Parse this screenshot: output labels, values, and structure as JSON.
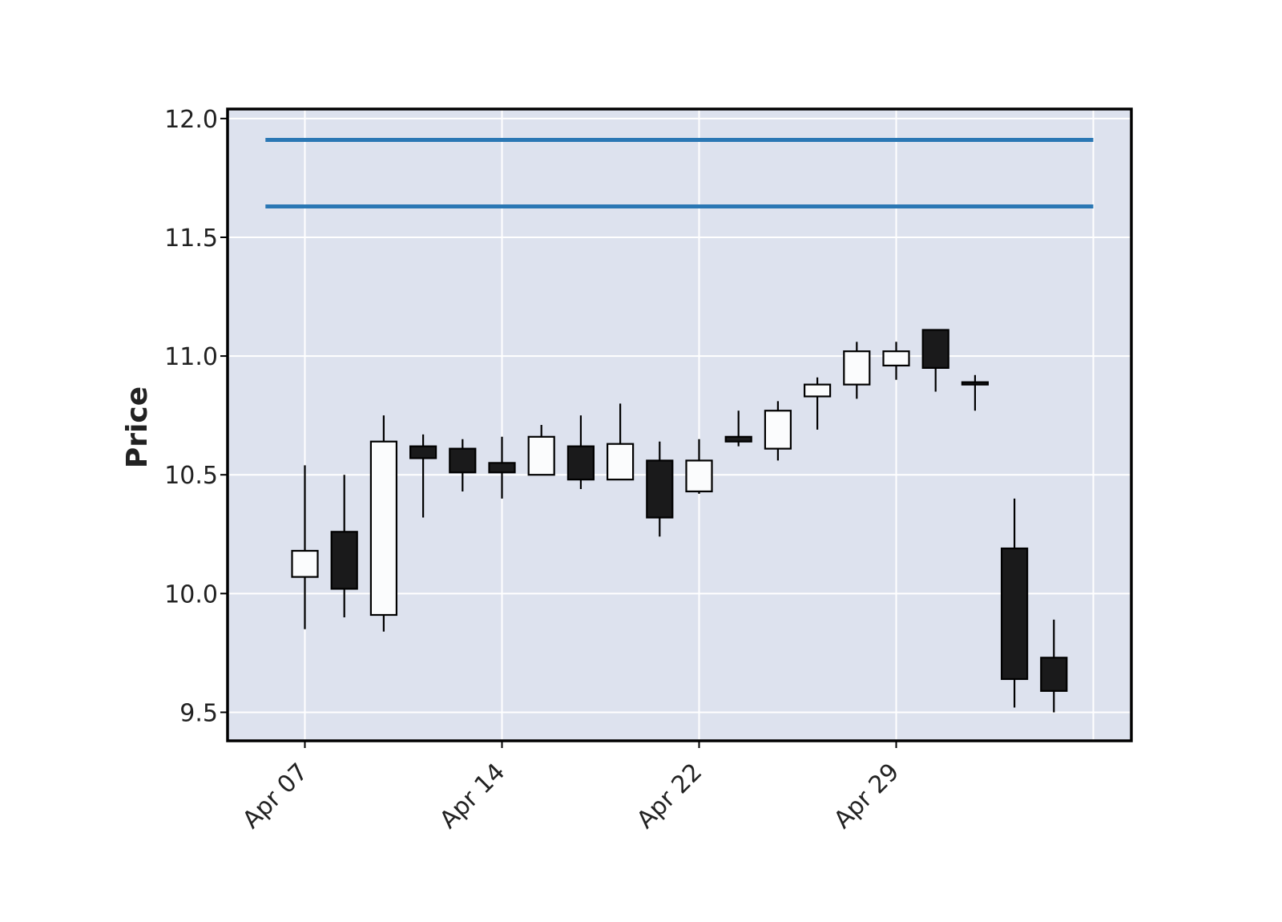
{
  "chart_data": {
    "type": "candlestick",
    "ylabel": "Price",
    "xlabel": "",
    "ylim": [
      9.38,
      12.04
    ],
    "yticks": [
      9.5,
      10.0,
      10.5,
      11.0,
      11.5,
      12.0
    ],
    "ytick_labels": [
      "9.5",
      "10.0",
      "10.5",
      "11.0",
      "11.5",
      "12.0"
    ],
    "xticks": [
      {
        "index": 0,
        "label": "Apr 07"
      },
      {
        "index": 5,
        "label": "Apr 14"
      },
      {
        "index": 10,
        "label": "Apr 22"
      },
      {
        "index": 15,
        "label": "Apr 29"
      }
    ],
    "grid": true,
    "colors": {
      "background": "#dde2ee",
      "up": "#fbfcfd",
      "down": "#1a1a1b",
      "edge": "#000000",
      "hline": "#2a77b4",
      "grid": "#ffffff"
    },
    "candles": [
      {
        "open": 10.07,
        "high": 10.54,
        "low": 9.85,
        "close": 10.18
      },
      {
        "open": 10.26,
        "high": 10.5,
        "low": 9.9,
        "close": 10.02
      },
      {
        "open": 9.91,
        "high": 10.75,
        "low": 9.84,
        "close": 10.64
      },
      {
        "open": 10.62,
        "high": 10.67,
        "low": 10.32,
        "close": 10.57
      },
      {
        "open": 10.61,
        "high": 10.65,
        "low": 10.43,
        "close": 10.51
      },
      {
        "open": 10.55,
        "high": 10.66,
        "low": 10.4,
        "close": 10.51
      },
      {
        "open": 10.5,
        "high": 10.71,
        "low": 10.5,
        "close": 10.66
      },
      {
        "open": 10.62,
        "high": 10.75,
        "low": 10.44,
        "close": 10.48
      },
      {
        "open": 10.48,
        "high": 10.8,
        "low": 10.48,
        "close": 10.63
      },
      {
        "open": 10.56,
        "high": 10.64,
        "low": 10.24,
        "close": 10.32
      },
      {
        "open": 10.43,
        "high": 10.65,
        "low": 10.42,
        "close": 10.56
      },
      {
        "open": 10.66,
        "high": 10.77,
        "low": 10.62,
        "close": 10.64
      },
      {
        "open": 10.61,
        "high": 10.81,
        "low": 10.56,
        "close": 10.77
      },
      {
        "open": 10.83,
        "high": 10.91,
        "low": 10.69,
        "close": 10.88
      },
      {
        "open": 10.88,
        "high": 11.06,
        "low": 10.82,
        "close": 11.02
      },
      {
        "open": 10.96,
        "high": 11.06,
        "low": 10.9,
        "close": 11.02
      },
      {
        "open": 11.11,
        "high": 11.11,
        "low": 10.85,
        "close": 10.95
      },
      {
        "open": 10.89,
        "high": 10.92,
        "low": 10.77,
        "close": 10.88
      },
      {
        "open": 10.19,
        "high": 10.4,
        "low": 9.52,
        "close": 9.64
      },
      {
        "open": 9.73,
        "high": 9.89,
        "low": 9.5,
        "close": 9.59
      }
    ],
    "hlines": [
      11.91,
      11.63
    ]
  }
}
